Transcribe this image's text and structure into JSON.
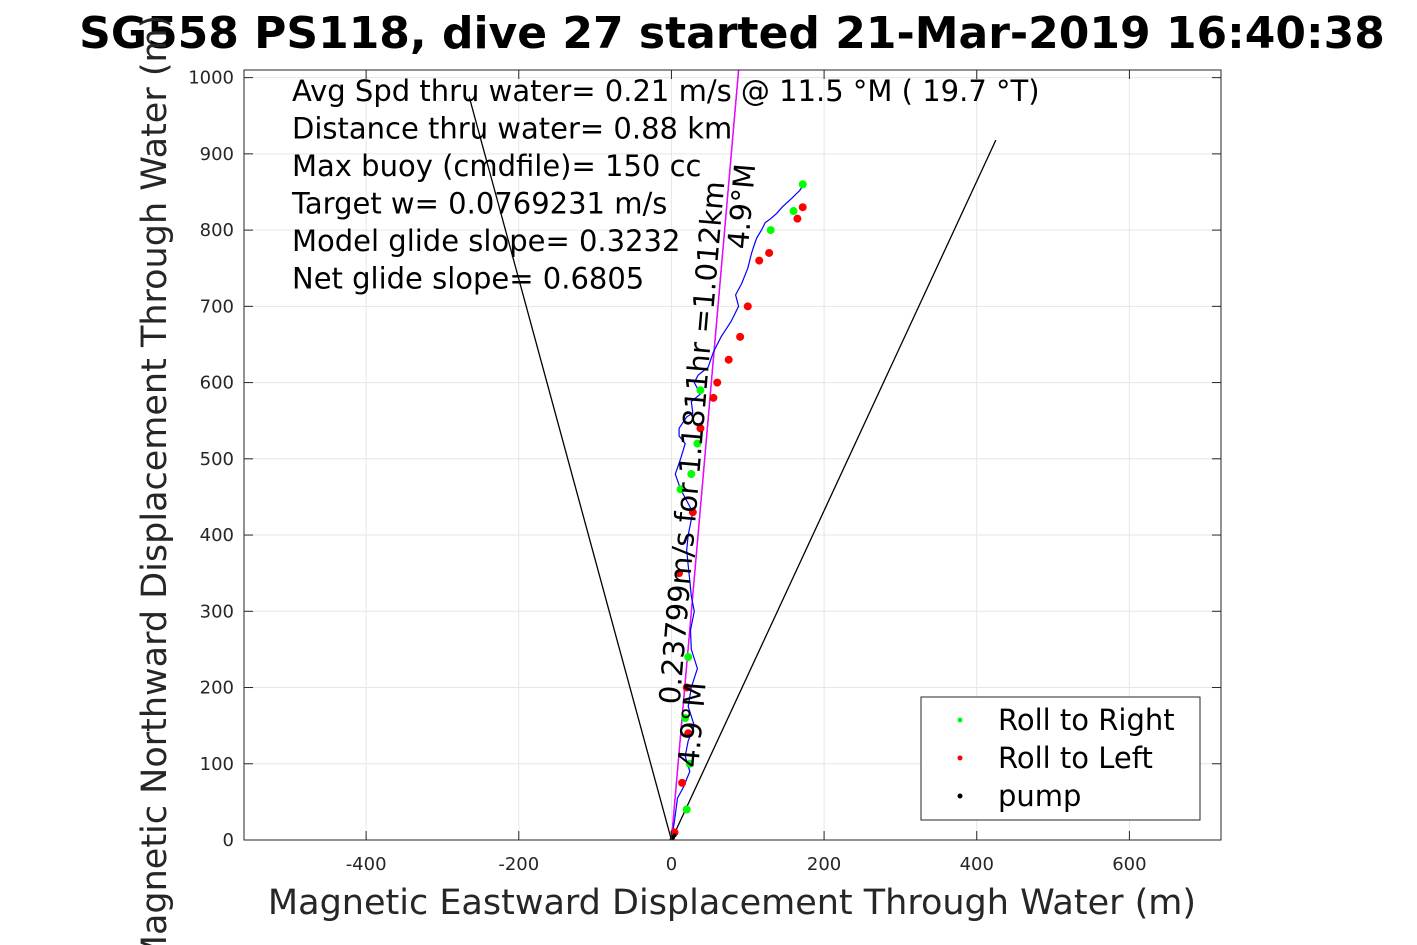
{
  "chart_data": {
    "type": "line",
    "title": "SG558 PS118, dive 27 started 21-Mar-2019 16:40:38",
    "xlabel": "Magnetic Eastward Displacement Through Water (m)",
    "ylabel": "Magnetic Northward Displacement Through Water (m)",
    "xlim": [
      -560,
      720
    ],
    "ylim": [
      0,
      1010
    ],
    "xticks": [
      -400,
      -200,
      0,
      200,
      400,
      600
    ],
    "yticks": [
      0,
      100,
      200,
      300,
      400,
      500,
      600,
      700,
      800,
      900,
      1000
    ],
    "grid": true,
    "info_lines": [
      "Avg Spd thru water=  0.21 m/s @  11.5 °M ( 19.7 °T)",
      "Distance thru water=  0.88 km",
      "Max buoy (cmdfile)= 150 cc",
      "Target w= 0.0769231 m/s",
      "Model glide slope= 0.3232",
      "Net glide slope= 0.6805"
    ],
    "annotations": [
      {
        "text": "0.23799m/s for 1.1811hr =1.012km",
        "x": 40,
        "y": 520,
        "angle": 85.1
      },
      {
        "text": "4.9°M",
        "x": 105,
        "y": 830,
        "angle": 85.1
      },
      {
        "text": "4.9°M",
        "x": 40,
        "y": 150,
        "angle": 85.1
      }
    ],
    "cone_lines": [
      {
        "x": [
          0,
          -265
        ],
        "y": [
          0,
          975
        ],
        "color": "#000000"
      },
      {
        "x": [
          0,
          425
        ],
        "y": [
          0,
          918
        ],
        "color": "#000000"
      },
      {
        "x": [
          0,
          88
        ],
        "y": [
          0,
          1010
        ],
        "color": "#0000ff"
      },
      {
        "x": [
          0,
          88
        ],
        "y": [
          0,
          1010
        ],
        "color": "#ff00ff"
      }
    ],
    "track": {
      "x": [
        0,
        4,
        8,
        16,
        24,
        18,
        22,
        30,
        22,
        26,
        34,
        26,
        25,
        30,
        26,
        24,
        22,
        20,
        22,
        28,
        12,
        5,
        12,
        18,
        10,
        10,
        20,
        28,
        26,
        38,
        30,
        35,
        48,
        55,
        65,
        78,
        88,
        84,
        92,
        100,
        105,
        110,
        112,
        118,
        123,
        130,
        138,
        145,
        158,
        168,
        172,
        174
      ],
      "y": [
        0,
        25,
        55,
        70,
        90,
        110,
        130,
        150,
        175,
        200,
        225,
        250,
        275,
        300,
        320,
        340,
        360,
        380,
        400,
        430,
        460,
        480,
        500,
        520,
        530,
        540,
        555,
        560,
        575,
        585,
        600,
        610,
        620,
        640,
        660,
        680,
        700,
        715,
        730,
        750,
        770,
        785,
        790,
        800,
        810,
        815,
        822,
        830,
        842,
        852,
        858,
        862
      ],
      "color": "#0000ff"
    },
    "series": [
      {
        "name": "Roll to Right",
        "color": "#00ff00",
        "x": [
          20,
          24,
          18,
          12,
          26,
          34,
          130,
          160,
          172,
          22,
          38
        ],
        "y": [
          40,
          100,
          160,
          460,
          480,
          520,
          800,
          825,
          860,
          240,
          590
        ]
      },
      {
        "name": "Roll to Left",
        "color": "#ff0000",
        "x": [
          4,
          14,
          22,
          20,
          10,
          28,
          38,
          55,
          75,
          90,
          100,
          115,
          128,
          165,
          172,
          60
        ],
        "y": [
          10,
          75,
          140,
          200,
          350,
          430,
          540,
          580,
          630,
          660,
          700,
          760,
          770,
          815,
          830,
          600
        ]
      },
      {
        "name": "pump",
        "color": "#000000",
        "x": [
          0,
          2,
          4
        ],
        "y": [
          0,
          3,
          6
        ]
      }
    ],
    "legend_position": "bottom-right"
  }
}
